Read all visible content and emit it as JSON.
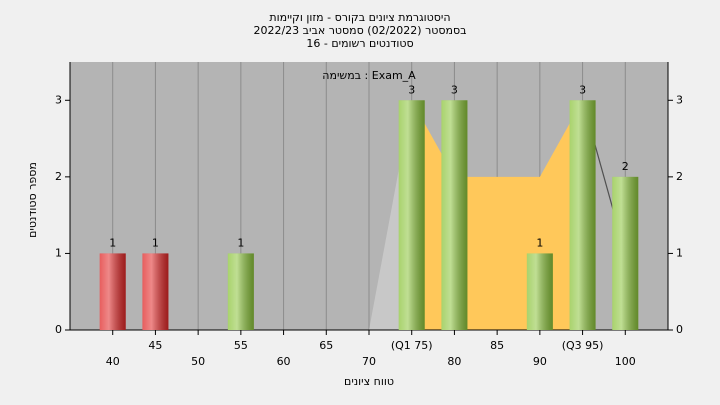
{
  "chart_data": {
    "type": "bar",
    "title": "היסטוגרמת ציונים בקורס - מזון וקיימות",
    "subtitle": "בסמסטר  (02/2022)  סמסטר אביב 2022/23",
    "subtitle2": "סטודנטים רשומים - 16",
    "annotation": "במשימה : Exam_A",
    "ylabel": "מספר סטודנטים",
    "xlabel": "טווח ציונים",
    "x": [
      40,
      45,
      50,
      55,
      60,
      65,
      70,
      75,
      80,
      85,
      90,
      95,
      100
    ],
    "values": [
      1,
      1,
      0,
      1,
      0,
      0,
      0,
      3,
      3,
      0,
      1,
      3,
      2
    ],
    "colors": [
      "#e02828",
      "#e02828",
      "#8cc43c",
      "#8cc43c",
      "#8cc43c",
      "#8cc43c",
      "#8cc43c",
      "#8cc43c",
      "#8cc43c",
      "#8cc43c",
      "#8cc43c",
      "#8cc43c",
      "#8cc43c"
    ],
    "areas": [
      {
        "color": "#c8c8c8",
        "x": [
          70,
          75
        ],
        "values": [
          0,
          3
        ]
      },
      {
        "color": "#ffc85a",
        "x": [
          75,
          80,
          85,
          90,
          95
        ],
        "values": [
          3,
          2,
          2,
          2,
          3
        ]
      },
      {
        "color": "#505050",
        "x": [
          95,
          100
        ],
        "values": [
          3,
          1
        ]
      }
    ],
    "xlim": [
      35,
      105
    ],
    "xticks": [
      40,
      45,
      50,
      55,
      60,
      65,
      70,
      {
        "value": 75,
        "label": "(Q1 75)"
      },
      80,
      85,
      90,
      {
        "value": 95,
        "label": "(Q3 95)"
      },
      100
    ],
    "ylim": [
      0,
      3.5
    ],
    "yticks": [
      0,
      1,
      2,
      3
    ],
    "grid": true
  }
}
